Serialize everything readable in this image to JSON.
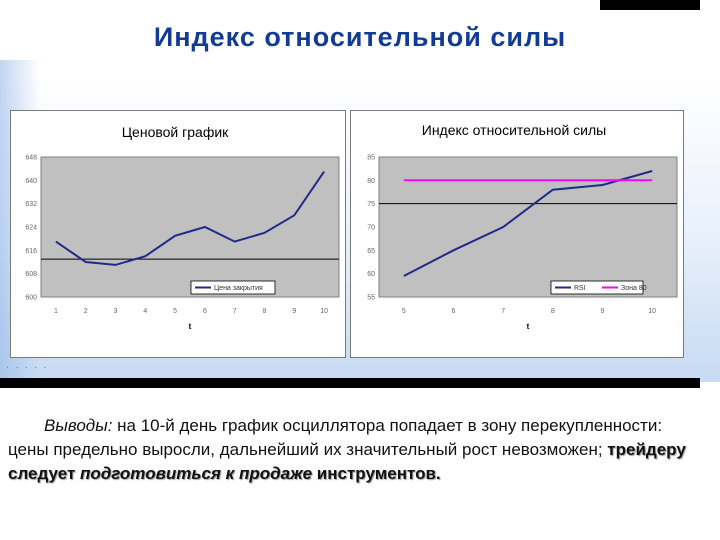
{
  "page_title": "Индекс относительной силы",
  "conclusion": {
    "lead": "Выводы:",
    "text": " на 10-й день график осциллятора попадает в зону перекупленности: цены предельно выросли, дальнейший их значительный рост невозможен; ",
    "emph1": "трейдеру следует ",
    "emph_italic1": "подготовиться к продаже",
    "emph2": " инструментов."
  },
  "colors": {
    "title": "#123b96",
    "plot_bg": "#c0c0c0",
    "series": "#1f2a8a",
    "threshold": "#ff00ff"
  },
  "chart_data": [
    {
      "type": "line",
      "title": "Ценовой график",
      "xlabel": "t",
      "x": [
        1,
        2,
        3,
        4,
        5,
        6,
        7,
        8,
        9,
        10
      ],
      "x_tick_labels": [
        "1",
        "2",
        "3",
        "4",
        "5",
        "6",
        "7",
        "8",
        "9",
        "10"
      ],
      "y_tick_labels": [
        "600",
        "608",
        "616",
        "624",
        "632",
        "640",
        "648"
      ],
      "ylim": [
        600,
        648
      ],
      "grid": false,
      "reference_lines": [
        613
      ],
      "legend_position": "bottom-right",
      "series": [
        {
          "name": "Цена закрытия",
          "values": [
            619,
            612,
            611,
            614,
            621,
            624,
            619,
            622,
            628,
            643
          ]
        }
      ]
    },
    {
      "type": "line",
      "title": "Индекс относительной силы",
      "xlabel": "t",
      "x": [
        5,
        6,
        7,
        8,
        9,
        10
      ],
      "x_tick_labels": [
        "5",
        "6",
        "7",
        "8",
        "9",
        "10"
      ],
      "y_tick_labels": [
        "55",
        "60",
        "65",
        "70",
        "75",
        "80",
        "85"
      ],
      "ylim": [
        55,
        85
      ],
      "grid": false,
      "reference_lines": [
        75
      ],
      "legend_position": "bottom-right",
      "series": [
        {
          "name": "RSI",
          "values": [
            59.5,
            65,
            70,
            78,
            79,
            82
          ]
        },
        {
          "name": "Зона 80",
          "values": [
            80,
            80,
            80,
            80,
            80,
            80
          ]
        }
      ]
    }
  ]
}
